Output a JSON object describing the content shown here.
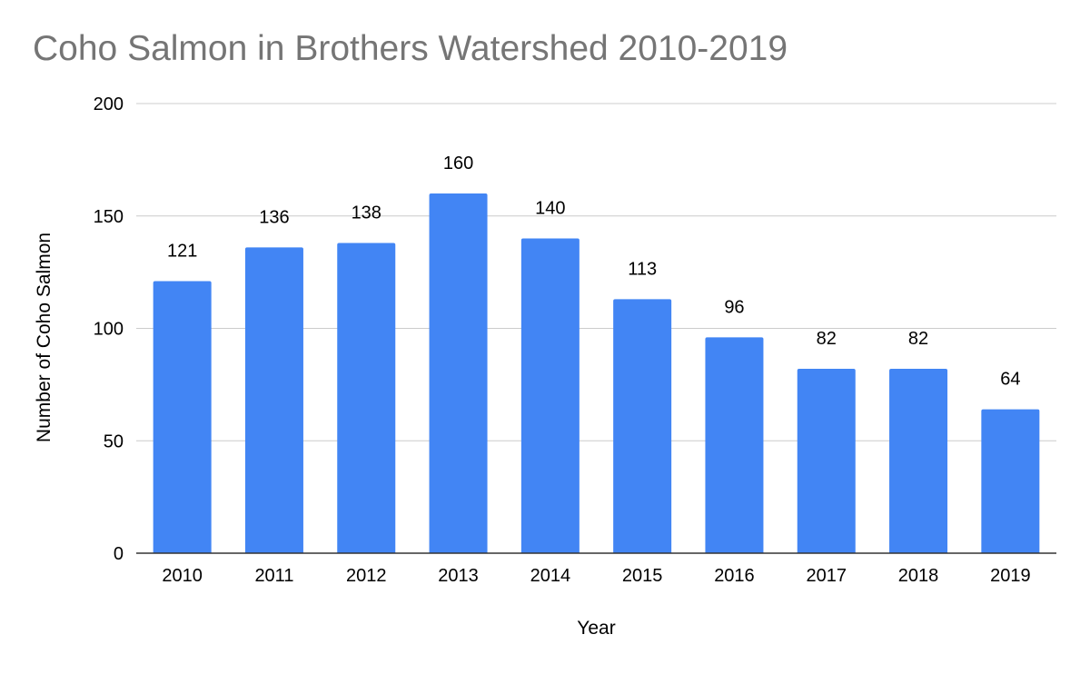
{
  "chart_data": {
    "type": "bar",
    "title": "Coho Salmon in Brothers Watershed 2010-2019",
    "xlabel": "Year",
    "ylabel": "Number of Coho Salmon",
    "categories": [
      "2010",
      "2011",
      "2012",
      "2013",
      "2014",
      "2015",
      "2016",
      "2017",
      "2018",
      "2019"
    ],
    "values": [
      121,
      136,
      138,
      160,
      140,
      113,
      96,
      82,
      82,
      64
    ],
    "data_labels": [
      "121",
      "136",
      "138",
      "160",
      "140",
      "113",
      "96",
      "82",
      "82",
      "64"
    ],
    "ylim": [
      0,
      200
    ],
    "yticks": [
      0,
      50,
      100,
      150,
      200
    ],
    "ytick_labels": [
      "0",
      "50",
      "100",
      "150",
      "200"
    ],
    "grid": true,
    "legend": "none",
    "colors": {
      "bar": "#4285f4",
      "title": "#757575",
      "gridline": "#cccccc",
      "baseline": "#333333",
      "text": "#000000"
    }
  }
}
